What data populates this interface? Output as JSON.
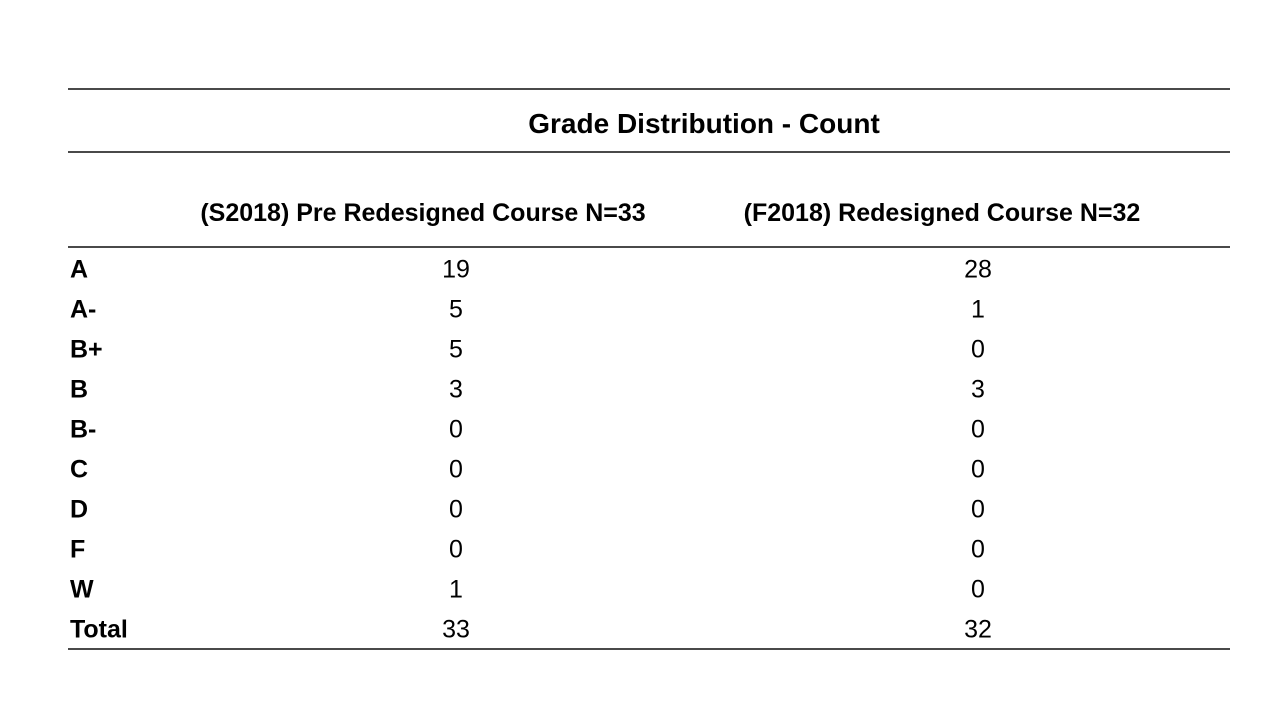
{
  "page": {
    "background_color": "#ffffff",
    "text_color": "#000000",
    "rule_color": "#4a4a4a"
  },
  "table": {
    "title": "Grade Distribution - Count",
    "columns": [
      "(S2018) Pre Redesigned Course N=33",
      "(F2018) Redesigned Course N=32"
    ],
    "rows": [
      {
        "grade": "A",
        "pre": "19",
        "post": "28"
      },
      {
        "grade": "A-",
        "pre": "5",
        "post": "1"
      },
      {
        "grade": "B+",
        "pre": "5",
        "post": "0"
      },
      {
        "grade": "B",
        "pre": "3",
        "post": "3"
      },
      {
        "grade": "B-",
        "pre": "0",
        "post": "0"
      },
      {
        "grade": "C",
        "pre": "0",
        "post": "0"
      },
      {
        "grade": "D",
        "pre": "0",
        "post": "0"
      },
      {
        "grade": "F",
        "pre": "0",
        "post": "0"
      },
      {
        "grade": "W",
        "pre": "1",
        "post": "0"
      },
      {
        "grade": "Total",
        "pre": "33",
        "post": "32"
      }
    ]
  },
  "chart_data": {
    "type": "table",
    "title": "Grade Distribution - Count",
    "categories": [
      "A",
      "A-",
      "B+",
      "B",
      "B-",
      "C",
      "D",
      "F",
      "W",
      "Total"
    ],
    "series": [
      {
        "name": "(S2018) Pre Redesigned Course N=33",
        "values": [
          19,
          5,
          5,
          3,
          0,
          0,
          0,
          0,
          1,
          33
        ]
      },
      {
        "name": "(F2018) Redesigned Course N=32",
        "values": [
          28,
          1,
          0,
          3,
          0,
          0,
          0,
          0,
          0,
          32
        ]
      }
    ],
    "layout": {
      "grid": "horizontal rules only (top, under title, under headers, bottom)",
      "value_alignment": "center",
      "label_alignment": "left"
    }
  }
}
